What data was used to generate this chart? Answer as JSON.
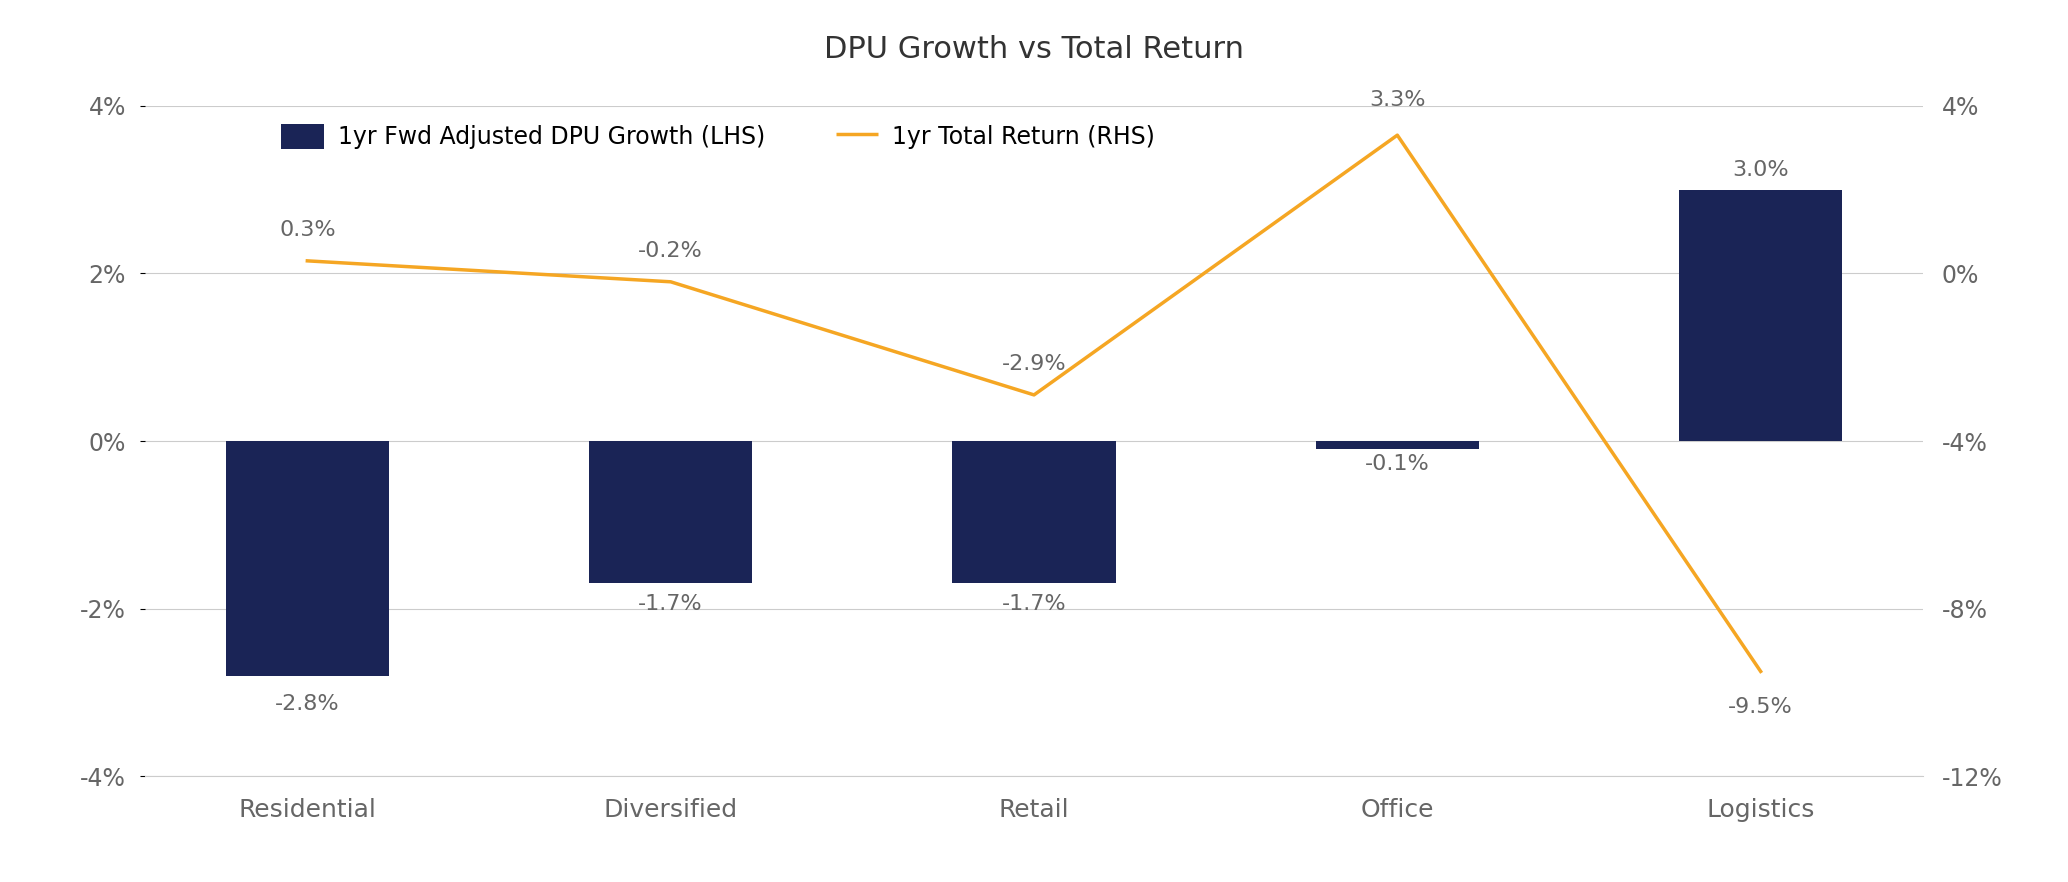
{
  "title": "DPU Growth vs Total Return",
  "categories": [
    "Residential",
    "Diversified",
    "Retail",
    "Office",
    "Logistics"
  ],
  "bar_values": [
    -2.8,
    -1.7,
    -1.7,
    -0.1,
    3.0
  ],
  "line_values": [
    0.3,
    -0.2,
    -2.9,
    3.3,
    -9.5
  ],
  "bar_labels": [
    "-2.8%",
    "-1.7%",
    "-1.7%",
    "-0.1%",
    "3.0%"
  ],
  "line_labels": [
    "0.3%",
    "-0.2%",
    "-2.9%",
    "3.3%",
    "-9.5%"
  ],
  "bar_color": "#1a2456",
  "line_color": "#f5a623",
  "background_color": "#ffffff",
  "legend_bar_label": "1yr Fwd Adjusted DPU Growth (LHS)",
  "legend_line_label": "1yr Total Return (RHS)",
  "lhs_ylim": [
    -4,
    4
  ],
  "lhs_yticks": [
    -4,
    -2,
    0,
    2,
    4
  ],
  "lhs_yticklabels": [
    "-4%",
    "-2%",
    "0%",
    "2%",
    "4%"
  ],
  "rhs_ylim": [
    -12,
    4
  ],
  "rhs_yticks": [
    -12,
    -8,
    -4,
    0,
    4
  ],
  "rhs_yticklabels": [
    "-12%",
    "-8%",
    "-4%",
    "0%",
    "4%"
  ],
  "bar_width": 0.45,
  "title_fontsize": 22,
  "tick_fontsize": 17,
  "legend_fontsize": 17,
  "annotation_fontsize": 16,
  "text_color": "#666666"
}
